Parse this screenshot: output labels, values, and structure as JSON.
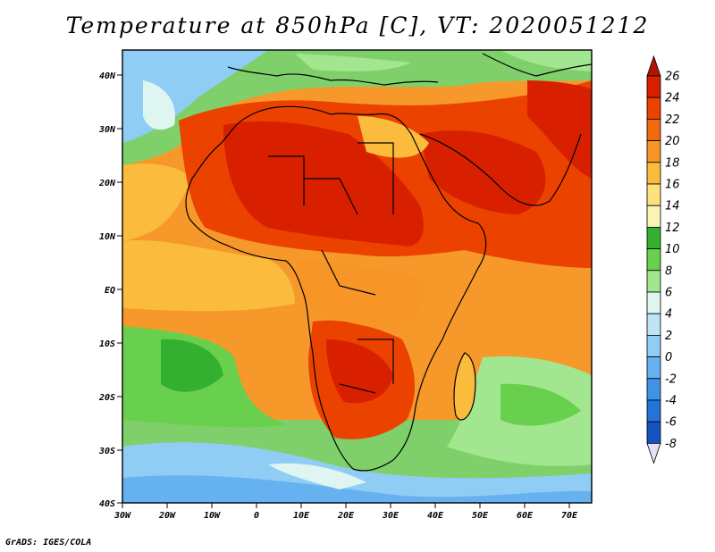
{
  "title": "Temperature at 850hPa [C], VT: 2020051212",
  "credit": "GrADS: IGES/COLA",
  "map": {
    "region": "Africa",
    "variable": "Temperature at 850hPa",
    "units": "C",
    "valid_time": "2020051212",
    "lon_range": [
      -30,
      75
    ],
    "lat_range": [
      -40,
      45
    ],
    "lat_ticks": [
      "40N",
      "30N",
      "20N",
      "10N",
      "EQ",
      "10S",
      "20S",
      "30S",
      "40S"
    ],
    "lon_ticks": [
      "30W",
      "20W",
      "10W",
      "0",
      "10E",
      "20E",
      "30E",
      "40E",
      "50E",
      "60E",
      "70E"
    ]
  },
  "colorbar": {
    "labels": [
      "26",
      "24",
      "22",
      "20",
      "18",
      "16",
      "14",
      "12",
      "10",
      "8",
      "6",
      "4",
      "2",
      "0",
      "-2",
      "-4",
      "-6",
      "-8"
    ],
    "colors": [
      "#b01500",
      "#d82000",
      "#ec4200",
      "#f26a10",
      "#f79626",
      "#fbbb3c",
      "#fde17a",
      "#fbf3b6",
      "#33b030",
      "#69d04e",
      "#a2e690",
      "#dff5f0",
      "#bde3f7",
      "#90cdf5",
      "#66b1ef",
      "#3f92e6",
      "#2473d8",
      "#1553c0",
      "#0b2a90"
    ]
  }
}
